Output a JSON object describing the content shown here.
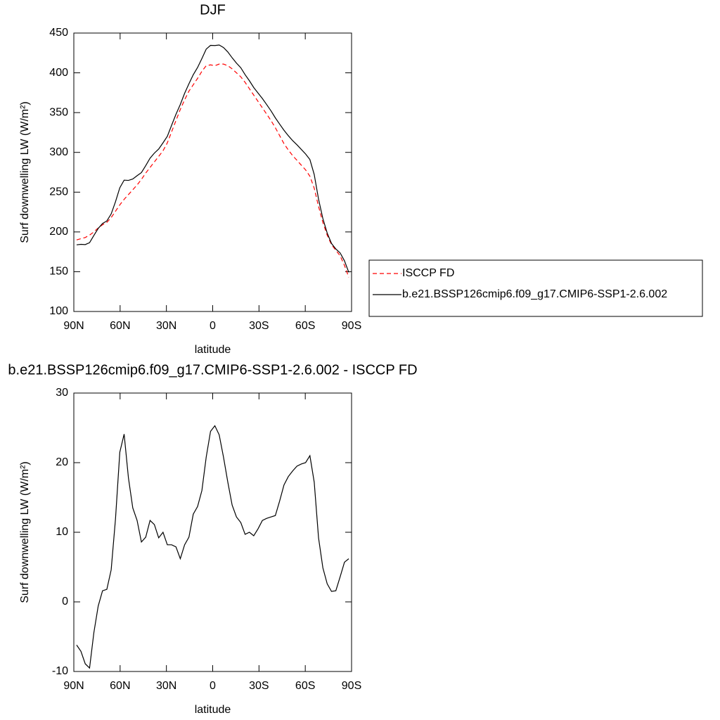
{
  "chart_data": [
    {
      "type": "line",
      "title": "DJF",
      "xlabel": "latitude",
      "ylabel": "Surf downwelling LW (W/m²)",
      "x": [
        88.2,
        85.4,
        82.6,
        79.8,
        77.0,
        74.2,
        71.4,
        68.6,
        65.8,
        63.0,
        60.2,
        57.4,
        54.6,
        51.8,
        49.0,
        46.2,
        43.4,
        40.6,
        37.8,
        35.0,
        32.2,
        29.4,
        26.6,
        23.8,
        21.0,
        18.2,
        15.4,
        12.6,
        9.8,
        7.0,
        4.2,
        1.4,
        -1.4,
        -4.2,
        -7.0,
        -9.8,
        -12.6,
        -15.4,
        -18.2,
        -21.0,
        -23.8,
        -26.6,
        -29.4,
        -32.2,
        -35.0,
        -37.8,
        -40.6,
        -43.4,
        -46.2,
        -49.0,
        -51.8,
        -54.6,
        -57.4,
        -60.2,
        -63.0,
        -65.8,
        -68.6,
        -71.4,
        -74.2,
        -77.0,
        -79.8,
        -82.6,
        -85.4,
        -88.2
      ],
      "series": [
        {
          "name": "ISCCP FD",
          "color": "#ff0000",
          "dashed": true,
          "values": [
            190,
            191.5,
            193,
            196,
            200,
            205,
            209,
            212,
            218,
            226,
            234,
            241,
            247,
            253,
            259,
            266,
            274,
            281,
            288,
            295,
            302,
            312,
            326,
            340,
            354,
            366,
            377,
            385,
            393,
            402,
            409,
            410,
            409,
            411,
            411,
            409,
            405,
            400,
            395,
            388,
            380,
            372,
            364,
            356,
            348,
            340,
            331,
            321,
            311,
            303,
            296,
            290,
            284,
            278,
            270,
            255,
            232,
            212,
            196,
            184,
            177,
            170,
            158,
            143
          ]
        },
        {
          "name": "b.e21.BSSP126cmip6.f09_g17.CMIP6-SSP1-2.6.002",
          "color": "#000000",
          "dashed": false,
          "values": [
            183.8,
            184.4,
            184.1,
            186.5,
            195.6,
            204.4,
            210.6,
            213.8,
            222.6,
            237.9,
            255.5,
            265.1,
            264.8,
            266.5,
            270.7,
            274.6,
            283.3,
            292.7,
            299.1,
            304.2,
            312,
            320.2,
            334.2,
            347.9,
            360.2,
            374.2,
            386.3,
            397.6,
            406.7,
            418,
            429.8,
            434.5,
            434.3,
            435,
            431.8,
            426.2,
            418.9,
            412.2,
            406.4,
            397.7,
            390,
            381.5,
            374.5,
            367.7,
            360,
            352.2,
            343.4,
            335.5,
            327.8,
            321,
            314.8,
            309.5,
            303.8,
            298,
            291,
            272.2,
            241.2,
            216.9,
            198.6,
            185.5,
            178.6,
            173.6,
            163.7,
            149.2
          ]
        }
      ],
      "xlim": [
        90,
        -90
      ],
      "xticks": [
        {
          "value": 90,
          "label": "90N"
        },
        {
          "value": 60,
          "label": "60N"
        },
        {
          "value": 30,
          "label": "30N"
        },
        0,
        {
          "value": -30,
          "label": "30S"
        },
        {
          "value": -60,
          "label": "60S"
        },
        {
          "value": -90,
          "label": "90S"
        }
      ],
      "ylim": [
        100,
        450
      ],
      "yticks": [
        100,
        150,
        200,
        250,
        300,
        350,
        400,
        450
      ],
      "legend": "right"
    },
    {
      "type": "line",
      "title": "b.e21.BSSP126cmip6.f09_g17.CMIP6-SSP1-2.6.002 - ISCCP FD",
      "xlabel": "latitude",
      "ylabel": "Surf downwelling LW (W/m²)",
      "x": [
        88.2,
        85.4,
        82.6,
        79.8,
        77.0,
        74.2,
        71.4,
        68.6,
        65.8,
        63.0,
        60.2,
        57.4,
        54.6,
        51.8,
        49.0,
        46.2,
        43.4,
        40.6,
        37.8,
        35.0,
        32.2,
        29.4,
        26.6,
        23.8,
        21.0,
        18.2,
        15.4,
        12.6,
        9.8,
        7.0,
        4.2,
        1.4,
        -1.4,
        -4.2,
        -7.0,
        -9.8,
        -12.6,
        -15.4,
        -18.2,
        -21.0,
        -23.8,
        -26.6,
        -29.4,
        -32.2,
        -35.0,
        -37.8,
        -40.6,
        -43.4,
        -46.2,
        -49.0,
        -51.8,
        -54.6,
        -57.4,
        -60.2,
        -63.0,
        -65.8,
        -68.6,
        -71.4,
        -74.2,
        -77.0,
        -79.8,
        -82.6,
        -85.4,
        -88.2
      ],
      "series": [
        {
          "color": "#000000",
          "dashed": false,
          "values": [
            -6.2,
            -7.1,
            -8.9,
            -9.5,
            -4.4,
            -0.6,
            1.6,
            1.8,
            4.6,
            11.9,
            21.5,
            24.1,
            17.8,
            13.5,
            11.7,
            8.6,
            9.3,
            11.7,
            11.1,
            9.2,
            10,
            8.2,
            8.2,
            7.9,
            6.2,
            8.2,
            9.3,
            12.6,
            13.7,
            16,
            20.8,
            24.5,
            25.3,
            24,
            20.8,
            17.2,
            13.9,
            12.2,
            11.4,
            9.7,
            10,
            9.5,
            10.5,
            11.7,
            12,
            12.2,
            12.4,
            14.5,
            16.8,
            18,
            18.8,
            19.5,
            19.8,
            20,
            21,
            17.2,
            9.2,
            4.9,
            2.6,
            1.5,
            1.6,
            3.6,
            5.7,
            6.2
          ]
        }
      ],
      "xlim": [
        90,
        -90
      ],
      "xticks": [
        {
          "value": 90,
          "label": "90N"
        },
        {
          "value": 60,
          "label": "60N"
        },
        {
          "value": 30,
          "label": "30N"
        },
        0,
        {
          "value": -30,
          "label": "30S"
        },
        {
          "value": -60,
          "label": "60S"
        },
        {
          "value": -90,
          "label": "90S"
        }
      ],
      "ylim": [
        -10,
        30
      ],
      "yticks": [
        -10,
        0,
        10,
        20,
        30
      ]
    }
  ]
}
